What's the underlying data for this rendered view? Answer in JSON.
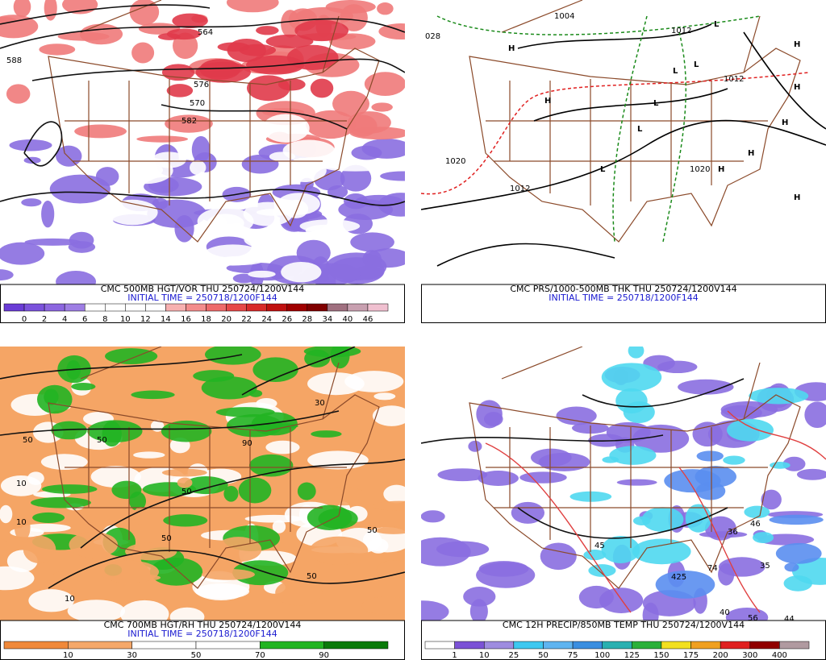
{
  "panels": [
    {
      "caption": "CMC 500MB HGT/VOR THU 250724/1200V144",
      "initial_time": "INITIAL TIME = 250718/1200F144",
      "scale_labels": [
        "0",
        "2",
        "4",
        "6",
        "8",
        "10",
        "12",
        "14",
        "16",
        "18",
        "20",
        "22",
        "24",
        "26",
        "28",
        "34",
        "40",
        "46"
      ],
      "map_labels": [
        "564",
        "588",
        "576",
        "570",
        "582"
      ]
    },
    {
      "caption": "CMC PRS/1000-500MB THK THU 250724/1200V144",
      "initial_time": "INITIAL TIME = 250718/1200F144",
      "map_labels": [
        "028",
        "1004",
        "1012",
        "1012",
        "1020",
        "1012",
        "1020",
        "H",
        "H",
        "H",
        "H",
        "H",
        "H",
        "H",
        "H",
        "L",
        "L",
        "L",
        "L",
        "L",
        "L"
      ]
    },
    {
      "caption": "CMC 700MB HGT/RH THU 250724/1200V144",
      "initial_time": "INITIAL TIME = 250718/1200F144",
      "scale_labels": [
        "10",
        "30",
        "50",
        "70",
        "90"
      ],
      "map_labels": [
        "10",
        "10",
        "10",
        "50",
        "50",
        "50",
        "50",
        "50",
        "50",
        "90",
        "30"
      ]
    },
    {
      "caption": "CMC 12H PRECIP/850MB TEMP THU 250724/1200V144",
      "scale_labels": [
        "1",
        "10",
        "25",
        "50",
        "75",
        "100",
        "125",
        "150",
        "175",
        "200",
        "300",
        "400"
      ],
      "map_labels": [
        "44",
        "56",
        "40",
        "74",
        "45",
        "425",
        "35",
        "46",
        "36"
      ]
    }
  ]
}
